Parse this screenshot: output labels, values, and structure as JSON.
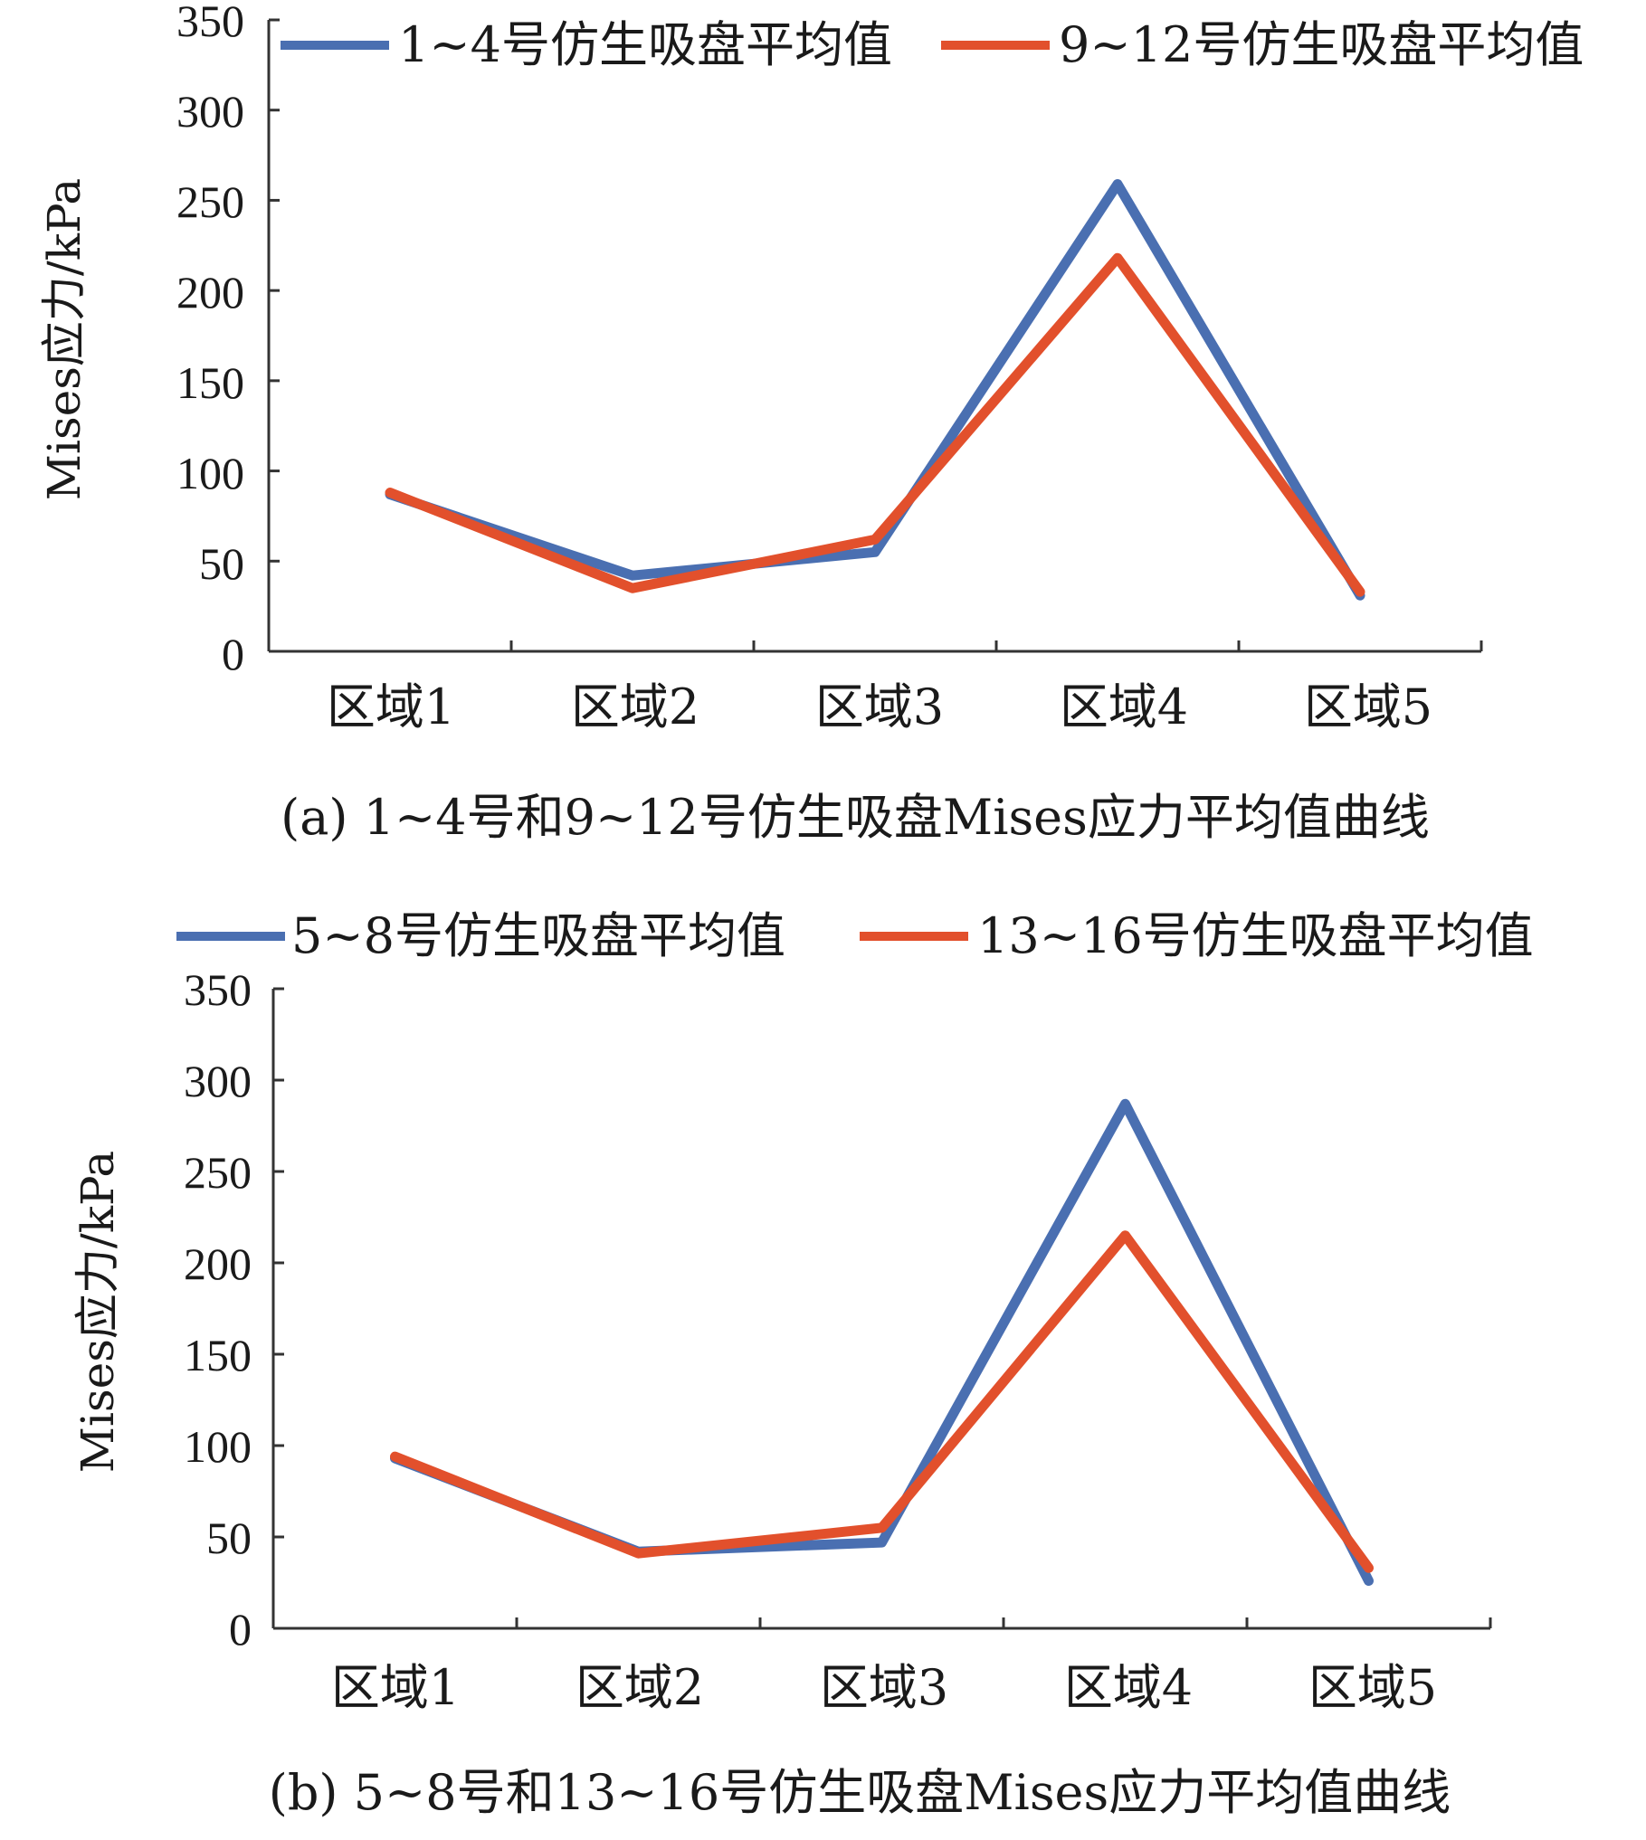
{
  "colors": {
    "blue": "#4a6fb1",
    "red": "#e2502c",
    "axis": "#333333"
  },
  "chart_data": [
    {
      "type": "line",
      "caption": "(a) 1~4号和9~12号仿生吸盘Mises应力平均值曲线",
      "ylabel": "Mises应力/kPa",
      "xlabel": "",
      "ylim": [
        0,
        350
      ],
      "yticks": [
        "0",
        "50",
        "100",
        "150",
        "200",
        "250",
        "300",
        "350"
      ],
      "categories": [
        "区域1",
        "区域2",
        "区域3",
        "区域4",
        "区域5"
      ],
      "legend_position": "top",
      "grid": false,
      "series": [
        {
          "name": "1~4号仿生吸盘平均值",
          "color": "#4a6fb1",
          "values": [
            87,
            42,
            55,
            259,
            31
          ]
        },
        {
          "name": "9~12号仿生吸盘平均值",
          "color": "#e2502c",
          "values": [
            88,
            35,
            62,
            218,
            33
          ]
        }
      ]
    },
    {
      "type": "line",
      "caption": "(b) 5~8号和13~16号仿生吸盘Mises应力平均值曲线",
      "ylabel": "Mises应力/kPa",
      "xlabel": "",
      "ylim": [
        0,
        350
      ],
      "yticks": [
        "0",
        "50",
        "100",
        "150",
        "200",
        "250",
        "300",
        "350"
      ],
      "categories": [
        "区域1",
        "区域2",
        "区域3",
        "区域4",
        "区域5"
      ],
      "legend_position": "top",
      "grid": false,
      "series": [
        {
          "name": "5~8号仿生吸盘平均值",
          "color": "#4a6fb1",
          "values": [
            93,
            42,
            47,
            287,
            26
          ]
        },
        {
          "name": "13~16号仿生吸盘平均值",
          "color": "#e2502c",
          "values": [
            94,
            41,
            55,
            215,
            33
          ]
        }
      ]
    }
  ]
}
